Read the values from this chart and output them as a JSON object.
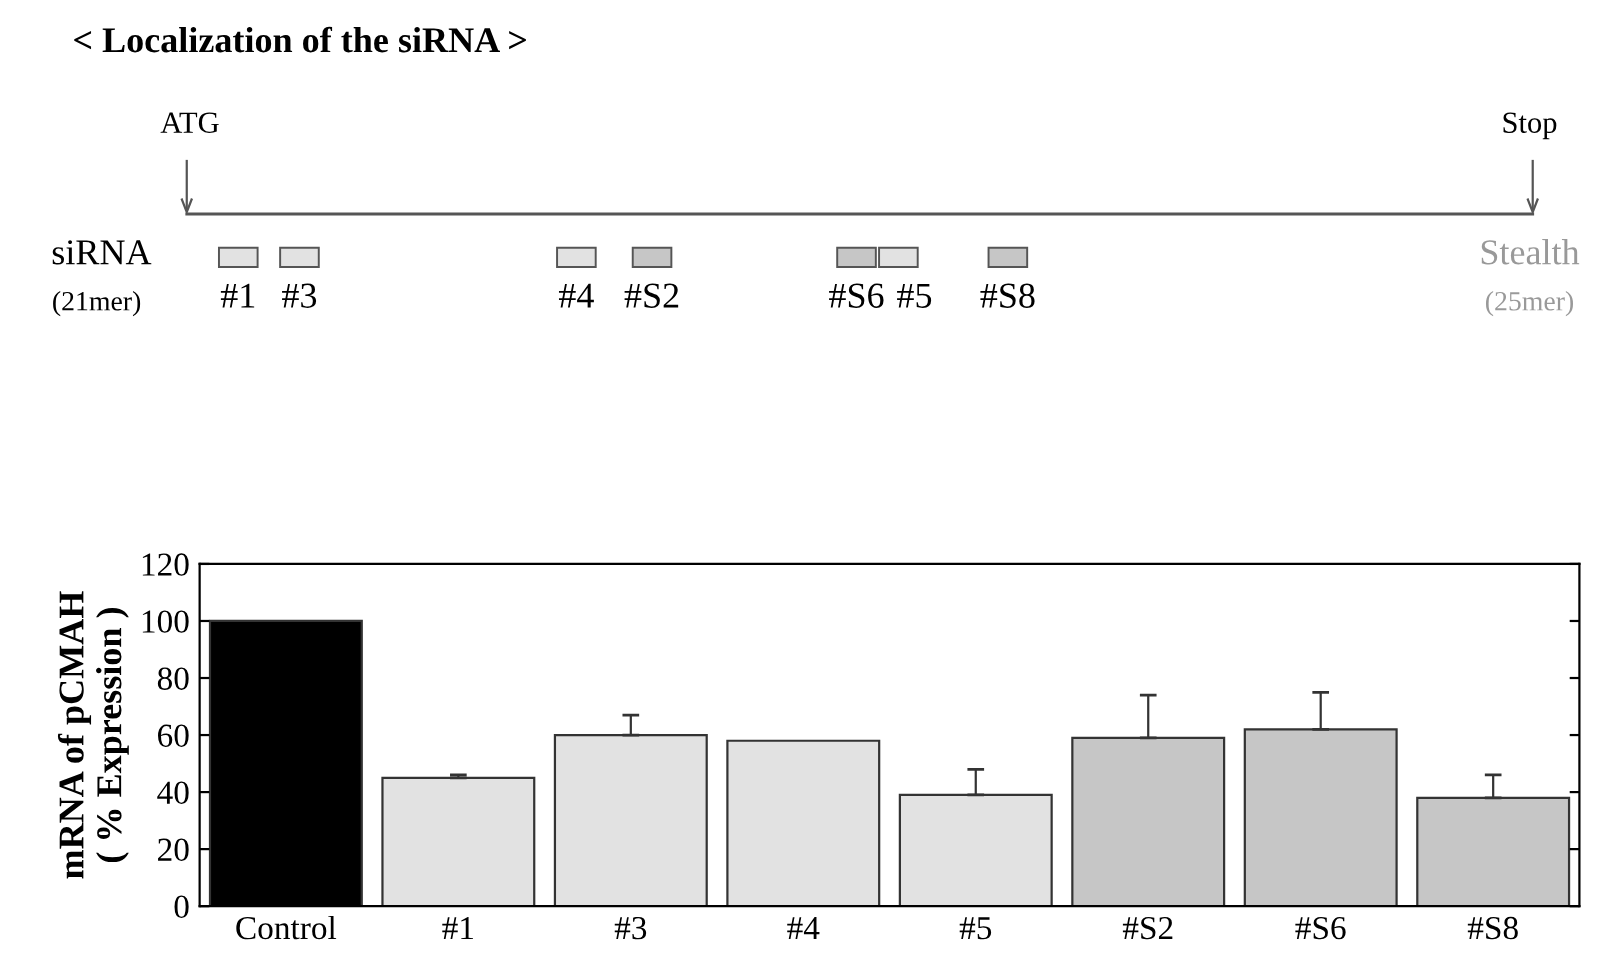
{
  "chart_data": {
    "type": "bar",
    "title": "< Localization of the siRNA >",
    "ylabel": "mRNA of pCMAH\n( % Expression )",
    "categories": [
      "Control",
      "#1",
      "#3",
      "#4",
      "#5",
      "#S2",
      "#S6",
      "#S8"
    ],
    "values": [
      100,
      45,
      60,
      58,
      39,
      59,
      62,
      38
    ],
    "errors": [
      null,
      1,
      7,
      null,
      9,
      15,
      13,
      8
    ],
    "colors": [
      "#000000",
      "#e2e2e2",
      "#e2e2e2",
      "#e2e2e2",
      "#e2e2e2",
      "#c6c6c6",
      "#c6c6c6",
      "#c6c6c6"
    ],
    "ylim": [
      0,
      120
    ],
    "yticks": [
      0,
      20,
      40,
      60,
      80,
      100,
      120
    ],
    "annotations": [
      "ATG",
      "Stop",
      "siRNA",
      "(21mer)",
      "#1",
      "#3",
      "#4",
      "#S2",
      "#S6",
      "#5",
      "#S8",
      "Stealth",
      "(25mer)"
    ]
  }
}
